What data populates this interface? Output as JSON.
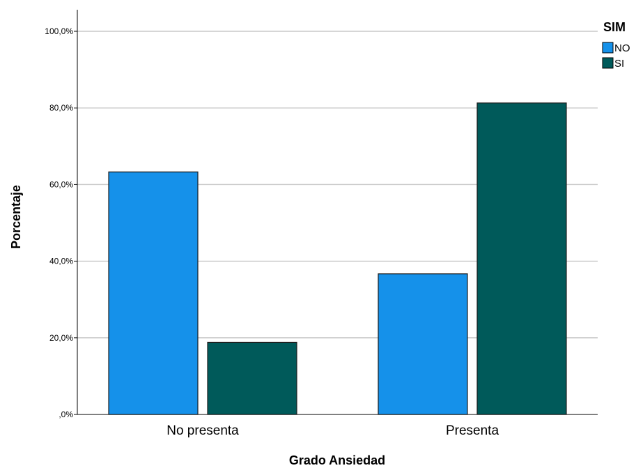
{
  "chart_data": {
    "type": "bar",
    "xlabel": "Grado Ansiedad",
    "ylabel": "Porcentaje",
    "categories": [
      "No presenta",
      "Presenta"
    ],
    "series": [
      {
        "name": "NO",
        "values": [
          63.3,
          36.7
        ],
        "color": "#1591ea"
      },
      {
        "name": "SI",
        "values": [
          18.8,
          81.3
        ],
        "color": "#005a5a"
      }
    ],
    "ylim": [
      0,
      100
    ],
    "yticks": [
      0,
      20,
      40,
      60,
      80,
      100
    ],
    "ytick_labels": [
      ",0%",
      "20,0%",
      "40,0%",
      "60,0%",
      "80,0%",
      "100,0%"
    ],
    "grid": true,
    "legend": {
      "title": "SIM",
      "placement": "top-right"
    }
  }
}
